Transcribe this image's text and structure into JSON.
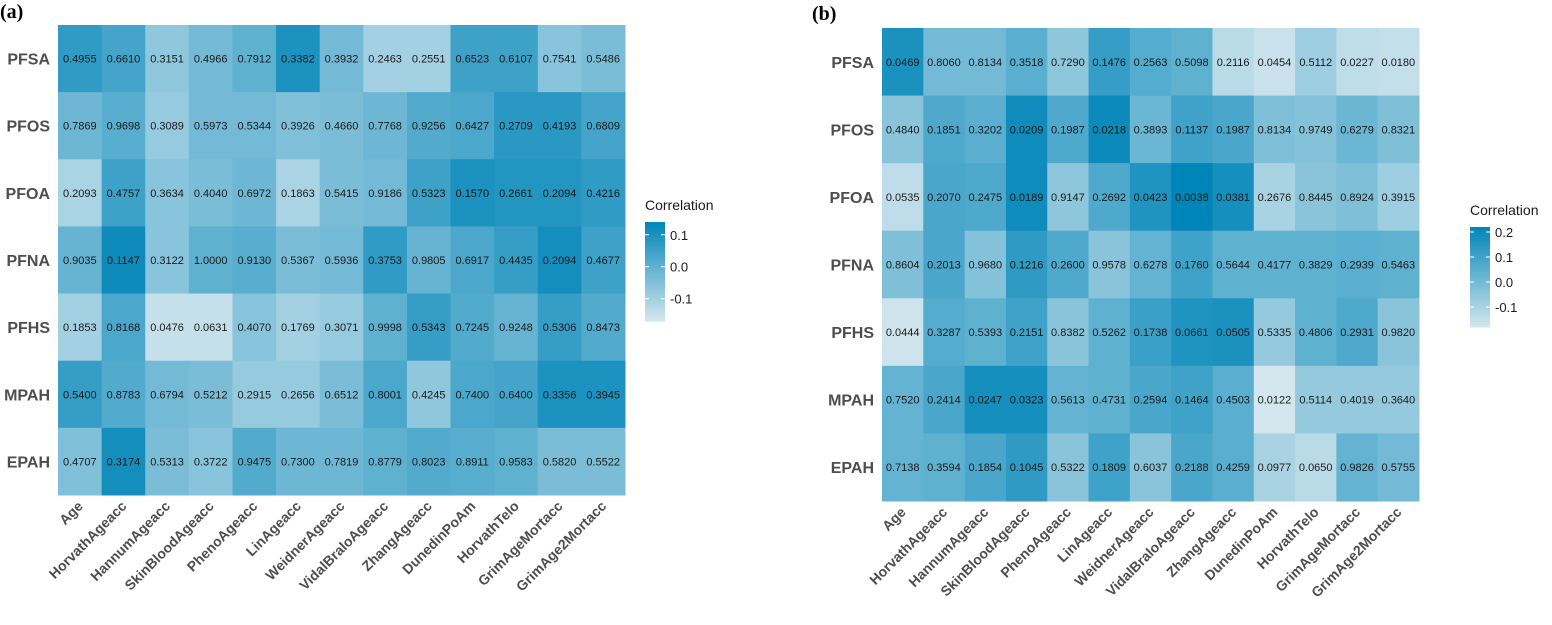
{
  "chart_data": [
    {
      "type": "heatmap",
      "panel_label": "(a)",
      "rows": [
        "PFSA",
        "PFOS",
        "PFOA",
        "PFNA",
        "PFHS",
        "MPAH",
        "EPAH"
      ],
      "columns": [
        "Age",
        "HorvathAgeacc",
        "HannumAgeacc",
        "SkinBloodAgeacc",
        "PhenoAgeacc",
        "LinAgeacc",
        "WeidnerAgeacc",
        "VidalBraloAgeacc",
        "ZhangAgeacc",
        "DunedinPoAm",
        "HorvathTelo",
        "GrimAgeMortacc",
        "GrimAge2Mortacc"
      ],
      "cell_labels": [
        [
          "0.4955",
          "0.6610",
          "0.3151",
          "0.4966",
          "0.7912",
          "0.3382",
          "0.3932",
          "0.2463",
          "0.2551",
          "0.6523",
          "0.6107",
          "0.7541",
          "0.5486"
        ],
        [
          "0.7869",
          "0.9698",
          "0.3089",
          "0.5973",
          "0.5344",
          "0.3926",
          "0.4660",
          "0.7768",
          "0.9256",
          "0.6427",
          "0.2709",
          "0.4193",
          "0.6809"
        ],
        [
          "0.2093",
          "0.4757",
          "0.3634",
          "0.4040",
          "0.6972",
          "0.1863",
          "0.5415",
          "0.9186",
          "0.5323",
          "0.1570",
          "0.2661",
          "0.2094",
          "0.4216"
        ],
        [
          "0.9035",
          "0.1147",
          "0.3122",
          "1.0000",
          "0.9130",
          "0.5367",
          "0.5936",
          "0.3753",
          "0.9805",
          "0.6917",
          "0.4435",
          "0.2094",
          "0.4677"
        ],
        [
          "0.1853",
          "0.8168",
          "0.0476",
          "0.0631",
          "0.4070",
          "0.1769",
          "0.3071",
          "0.9998",
          "0.5343",
          "0.7245",
          "0.9248",
          "0.5306",
          "0.8473"
        ],
        [
          "0.5400",
          "0.8783",
          "0.6794",
          "0.5212",
          "0.2915",
          "0.2656",
          "0.6512",
          "0.8001",
          "0.4245",
          "0.7400",
          "0.6400",
          "0.3356",
          "0.3945"
        ],
        [
          "0.4707",
          "0.3174",
          "0.5313",
          "0.3722",
          "0.9475",
          "0.7300",
          "0.7819",
          "0.8779",
          "0.8023",
          "0.8911",
          "0.9583",
          "0.5820",
          "0.5522"
        ]
      ],
      "correlation": [
        [
          0.07,
          0.04,
          -0.07,
          -0.03,
          0.0,
          0.1,
          -0.03,
          -0.1,
          -0.1,
          0.05,
          0.05,
          -0.06,
          -0.04
        ],
        [
          -0.02,
          0.01,
          -0.08,
          -0.03,
          -0.03,
          -0.05,
          -0.04,
          -0.02,
          0.02,
          0.03,
          0.08,
          0.08,
          0.04
        ],
        [
          -0.11,
          0.05,
          -0.06,
          -0.04,
          -0.02,
          -0.11,
          -0.04,
          -0.03,
          0.05,
          0.1,
          0.09,
          0.09,
          0.07
        ],
        [
          -0.01,
          0.12,
          -0.06,
          0.0,
          0.01,
          -0.04,
          -0.03,
          0.07,
          -0.01,
          0.03,
          0.06,
          0.11,
          0.05
        ],
        [
          -0.1,
          0.03,
          -0.15,
          -0.15,
          -0.06,
          -0.1,
          -0.08,
          0.0,
          0.06,
          0.02,
          -0.01,
          0.06,
          0.02
        ],
        [
          0.06,
          0.02,
          -0.03,
          -0.04,
          -0.08,
          -0.08,
          -0.04,
          0.03,
          -0.07,
          0.03,
          0.04,
          0.1,
          0.1
        ],
        [
          -0.05,
          0.11,
          -0.04,
          -0.06,
          0.02,
          -0.02,
          -0.02,
          0.0,
          0.02,
          0.01,
          0.0,
          -0.04,
          -0.04
        ]
      ],
      "legend": {
        "title": "Correlation",
        "ticks": [
          "0.1",
          "0.0",
          "-0.1"
        ],
        "tick_values": [
          0.1,
          0.0,
          -0.1
        ],
        "range": [
          -0.17,
          0.14
        ],
        "placement": "right"
      },
      "colors": {
        "low": "#d3e6ee",
        "high": "#0085b8"
      }
    },
    {
      "type": "heatmap",
      "panel_label": "(b)",
      "rows": [
        "PFSA",
        "PFOS",
        "PFOA",
        "PFNA",
        "PFHS",
        "MPAH",
        "EPAH"
      ],
      "columns": [
        "Age",
        "HorvathAgeacc",
        "HannumAgeacc",
        "SkinBloodAgeacc",
        "PhenoAgeacc",
        "LinAgeacc",
        "WeidnerAgeacc",
        "VidalBraloAgeacc",
        "ZhangAgeacc",
        "DunedinPoAm",
        "HorvathTelo",
        "GrimAgeMortacc",
        "GrimAge2Mortacc"
      ],
      "cell_labels": [
        [
          "0.0469",
          "0.8060",
          "0.8134",
          "0.3518",
          "0.7290",
          "0.1476",
          "0.2563",
          "0.5098",
          "0.2116",
          "0.0454",
          "0.5112",
          "0.0227",
          "0.0180"
        ],
        [
          "0.4840",
          "0.1851",
          "0.3202",
          "0.0209",
          "0.1987",
          "0.0218",
          "0.3893",
          "0.1137",
          "0.1987",
          "0.8134",
          "0.9749",
          "0.6279",
          "0.8321"
        ],
        [
          "0.0535",
          "0.2070",
          "0.2475",
          "0.0189",
          "0.9147",
          "0.2692",
          "0.0423",
          "0.0038",
          "0.0381",
          "0.2676",
          "0.8445",
          "0.8924",
          "0.3915"
        ],
        [
          "0.8604",
          "0.2013",
          "0.9680",
          "0.1216",
          "0.2600",
          "0.9578",
          "0.6278",
          "0.1760",
          "0.5644",
          "0.4177",
          "0.3829",
          "0.2939",
          "0.5463"
        ],
        [
          "0.0444",
          "0.3287",
          "0.5393",
          "0.2151",
          "0.8382",
          "0.5262",
          "0.1738",
          "0.0661",
          "0.0505",
          "0.5335",
          "0.4806",
          "0.2931",
          "0.9820"
        ],
        [
          "0.7520",
          "0.2414",
          "0.0247",
          "0.0323",
          "0.5613",
          "0.4731",
          "0.2594",
          "0.1464",
          "0.4503",
          "0.0122",
          "0.5114",
          "0.4019",
          "0.3640"
        ],
        [
          "0.7138",
          "0.3594",
          "0.1854",
          "0.1045",
          "0.5322",
          "0.1809",
          "0.6037",
          "0.2188",
          "0.4259",
          "0.0977",
          "0.0650",
          "0.9826",
          "0.5755"
        ]
      ],
      "correlation": [
        [
          0.17,
          0.0,
          0.0,
          0.05,
          -0.05,
          0.12,
          0.06,
          0.04,
          -0.13,
          -0.16,
          -0.08,
          -0.14,
          -0.15
        ],
        [
          -0.04,
          0.07,
          0.05,
          0.19,
          0.07,
          0.2,
          0.02,
          0.1,
          0.08,
          -0.02,
          -0.03,
          0.02,
          -0.02
        ],
        [
          -0.14,
          0.08,
          0.07,
          0.19,
          -0.05,
          0.07,
          0.16,
          0.22,
          0.18,
          -0.1,
          -0.04,
          -0.02,
          -0.08
        ],
        [
          -0.02,
          0.08,
          -0.03,
          0.13,
          0.07,
          -0.04,
          0.03,
          0.1,
          0.04,
          0.04,
          0.04,
          0.05,
          0.04
        ],
        [
          -0.17,
          0.06,
          0.04,
          0.1,
          -0.04,
          0.04,
          0.11,
          0.16,
          0.17,
          -0.06,
          0.04,
          0.07,
          -0.04
        ],
        [
          0.03,
          0.08,
          0.18,
          0.18,
          0.03,
          0.04,
          0.08,
          0.1,
          0.05,
          -0.18,
          -0.06,
          -0.06,
          -0.06
        ],
        [
          0.03,
          0.04,
          0.08,
          0.13,
          -0.04,
          0.1,
          -0.04,
          0.08,
          0.05,
          -0.1,
          -0.13,
          0.03,
          0.0
        ]
      ],
      "legend": {
        "title": "Correlation",
        "ticks": [
          "0.2",
          "0.1",
          "0.0",
          "-0.1"
        ],
        "tick_values": [
          0.2,
          0.1,
          0.0,
          -0.1
        ],
        "range": [
          -0.18,
          0.22
        ],
        "placement": "right"
      },
      "colors": {
        "low": "#d3e6ee",
        "high": "#0085b8"
      }
    }
  ]
}
